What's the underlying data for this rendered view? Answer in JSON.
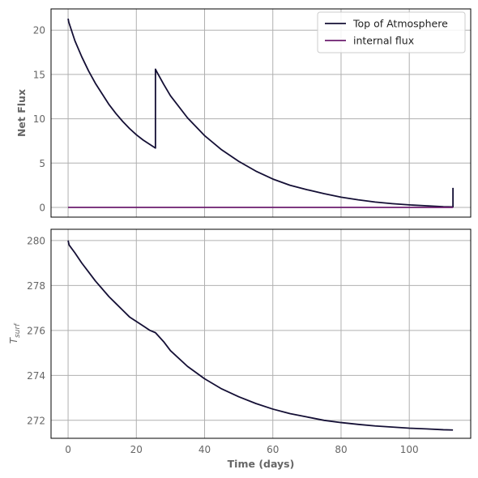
{
  "chart_data": [
    {
      "type": "line",
      "ylabel": "Net Flux",
      "xlim": [
        -5,
        118
      ],
      "ylim": [
        -1.1,
        22.4
      ],
      "xticks": [
        0,
        20,
        40,
        60,
        80,
        100
      ],
      "yticks": [
        0,
        5,
        10,
        15,
        20
      ],
      "grid": true,
      "legend": "top-right",
      "series": [
        {
          "name": "Top of Atmosphere",
          "color": "#140f35",
          "x": [
            0,
            0.2,
            2,
            4,
            6,
            8,
            10,
            12,
            14,
            16,
            18,
            20,
            22,
            24,
            25.6,
            25.6,
            26,
            28,
            30,
            35,
            40,
            45,
            50,
            55,
            60,
            65,
            70,
            75,
            80,
            85,
            90,
            95,
            100,
            105,
            110,
            112.8,
            112.8
          ],
          "y": [
            21.3,
            20.9,
            18.8,
            17.0,
            15.4,
            14.0,
            12.8,
            11.6,
            10.6,
            9.7,
            8.9,
            8.2,
            7.6,
            7.1,
            6.7,
            15.6,
            15.3,
            13.9,
            12.6,
            10.1,
            8.1,
            6.5,
            5.2,
            4.1,
            3.2,
            2.5,
            2.0,
            1.55,
            1.15,
            0.85,
            0.6,
            0.42,
            0.28,
            0.18,
            0.08,
            0.05,
            2.2
          ]
        },
        {
          "name": "internal flux",
          "color": "#6b1d6e",
          "x": [
            0,
            112.8
          ],
          "y": [
            0,
            0
          ]
        }
      ]
    },
    {
      "type": "line",
      "ylabel": "T",
      "ylabel_sub": "surf",
      "xlabel": "Time (days)",
      "xlim": [
        -5,
        118
      ],
      "ylim": [
        271.2,
        280.5
      ],
      "xticks": [
        0,
        20,
        40,
        60,
        80,
        100
      ],
      "yticks": [
        272,
        274,
        276,
        278,
        280
      ],
      "grid": true,
      "series": [
        {
          "color": "#140f35",
          "x": [
            0,
            0.3,
            2,
            4,
            6,
            8,
            10,
            12,
            14,
            16,
            18,
            20,
            22,
            24,
            25.6,
            28,
            30,
            35,
            40,
            45,
            50,
            55,
            60,
            65,
            70,
            75,
            80,
            85,
            90,
            95,
            100,
            105,
            110,
            112.8
          ],
          "y": [
            280.0,
            279.8,
            279.45,
            279.0,
            278.6,
            278.2,
            277.85,
            277.5,
            277.2,
            276.9,
            276.6,
            276.4,
            276.2,
            276.0,
            275.9,
            275.5,
            275.1,
            274.4,
            273.85,
            273.4,
            273.05,
            272.75,
            272.5,
            272.3,
            272.15,
            272.0,
            271.9,
            271.82,
            271.75,
            271.7,
            271.65,
            271.62,
            271.58,
            271.57
          ]
        }
      ]
    }
  ]
}
